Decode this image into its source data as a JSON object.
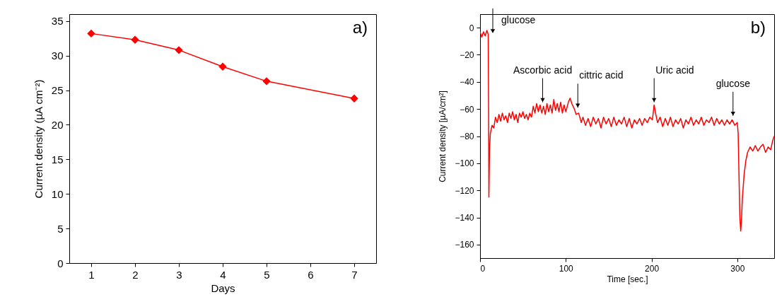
{
  "chart_data": [
    {
      "type": "line",
      "xlabel": "Days",
      "ylabel": "Current density (µA cm⁻²)",
      "x": [
        1,
        2,
        3,
        4,
        5,
        7
      ],
      "values": [
        33.2,
        32.3,
        30.8,
        28.4,
        26.3,
        23.8
      ],
      "color": "#ff0000",
      "marker": "diamond",
      "xlim": [
        0.5,
        7.5
      ],
      "xticks": [
        1,
        2,
        3,
        4,
        5,
        6,
        7
      ],
      "ylim": [
        0,
        36
      ],
      "yticks": [
        0,
        5,
        10,
        15,
        20,
        25,
        30,
        35
      ],
      "annotations": [
        "a)"
      ]
    },
    {
      "type": "line",
      "xlabel": "Time [sec.]",
      "ylabel": "Current density [µA/cm²]",
      "color": "#ff0000",
      "xlim": [
        0,
        343
      ],
      "xticks": [
        0,
        100,
        200,
        300
      ],
      "ylim": [
        -170,
        10
      ],
      "yticks": [
        -160,
        -140,
        -120,
        -100,
        -80,
        -60,
        -40,
        -20,
        0
      ],
      "x": [
        0,
        2,
        4,
        6,
        8,
        9.5,
        10,
        10.3,
        11,
        12,
        14,
        16,
        18,
        20,
        22,
        24,
        26,
        28,
        30,
        32,
        34,
        36,
        38,
        40,
        42,
        44,
        46,
        48,
        50,
        52,
        54,
        56,
        58,
        60,
        62,
        64,
        66,
        68,
        70,
        72,
        74,
        76,
        78,
        80,
        82,
        84,
        86,
        88,
        90,
        92,
        94,
        96,
        98,
        100,
        103,
        105,
        107,
        110,
        112,
        115,
        118,
        120,
        123,
        126,
        129,
        132,
        135,
        138,
        141,
        144,
        147,
        150,
        153,
        156,
        159,
        162,
        165,
        168,
        171,
        174,
        177,
        180,
        183,
        186,
        189,
        192,
        195,
        198,
        201,
        203,
        205,
        207,
        210,
        213,
        216,
        219,
        222,
        225,
        228,
        231,
        234,
        237,
        240,
        243,
        246,
        249,
        252,
        255,
        258,
        261,
        264,
        267,
        270,
        273,
        276,
        279,
        282,
        285,
        288,
        291,
        294,
        297,
        300,
        301,
        302,
        303,
        304,
        305,
        306,
        308,
        310,
        312,
        315,
        318,
        321,
        324,
        327,
        330,
        333,
        336,
        339,
        341,
        343
      ],
      "values": [
        -3,
        -7,
        -3,
        -6,
        -2,
        -5,
        -60,
        -125,
        -90,
        -78,
        -72,
        -74,
        -66,
        -70,
        -64,
        -69,
        -63,
        -68,
        -65,
        -70,
        -63,
        -67,
        -62,
        -68,
        -64,
        -70,
        -63,
        -66,
        -62,
        -67,
        -64,
        -68,
        -63,
        -66,
        -58,
        -63,
        -56,
        -62,
        -57,
        -63,
        -58,
        -64,
        -56,
        -62,
        -57,
        -63,
        -53,
        -61,
        -56,
        -62,
        -55,
        -63,
        -57,
        -62,
        -55,
        -52,
        -56,
        -60,
        -64,
        -63,
        -70,
        -66,
        -72,
        -67,
        -73,
        -66,
        -71,
        -67,
        -74,
        -66,
        -71,
        -67,
        -73,
        -66,
        -72,
        -68,
        -71,
        -66,
        -73,
        -67,
        -74,
        -68,
        -71,
        -67,
        -72,
        -67,
        -70,
        -66,
        -68,
        -57,
        -64,
        -70,
        -66,
        -73,
        -67,
        -72,
        -66,
        -73,
        -68,
        -71,
        -67,
        -74,
        -68,
        -71,
        -66,
        -72,
        -68,
        -71,
        -66,
        -72,
        -68,
        -70,
        -66,
        -72,
        -67,
        -71,
        -68,
        -72,
        -68,
        -71,
        -68,
        -72,
        -70,
        -78,
        -110,
        -140,
        -150,
        -140,
        -125,
        -108,
        -98,
        -92,
        -88,
        -91,
        -87,
        -91,
        -88,
        -86,
        -92,
        -88,
        -90,
        -84,
        -80
      ],
      "annotations": [
        "b)",
        "glucose",
        {
          "text": "Ascorbic acid",
          "x": 73,
          "y": -55
        },
        {
          "text": "cittric acid",
          "x": 114,
          "y": -59
        },
        {
          "text": "Uric acid",
          "x": 203,
          "y": -55
        },
        {
          "text": "glucose",
          "x": 295,
          "y": -65
        }
      ]
    }
  ]
}
